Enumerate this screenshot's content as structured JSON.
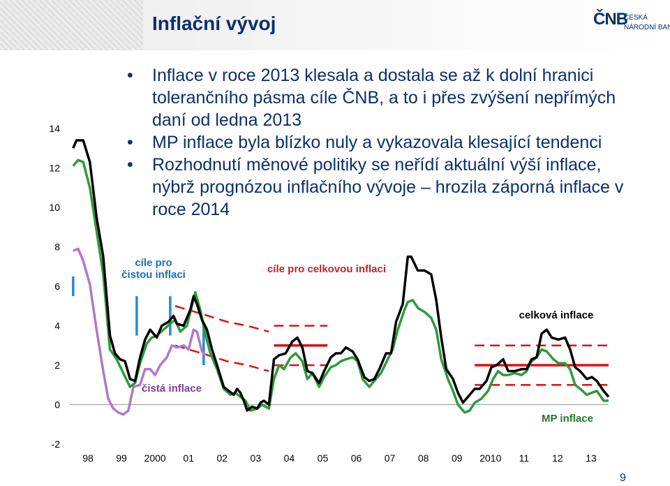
{
  "header": {
    "title": "Inflační vývoj",
    "logo_mark": "ČNB",
    "logo_line1": "ČESKÁ",
    "logo_line2": "NÁRODNÍ BANKA"
  },
  "bullets": [
    "Inflace v roce 2013 klesala a dostala se až k dolní hranici tolerančního pásma cíle ČNB, a to i přes zvýšení nepřímých daní od ledna 2013",
    "MP inflace byla blízko nuly a vykazovala klesající tendenci",
    "Rozhodnutí měnové politiky se neřídí aktuální výší inflace, nýbrž prognózou inflačního vývoje – hrozila záporná inflace v roce 2014"
  ],
  "page_number": "9",
  "chart_data": {
    "type": "line",
    "x_tick_labels": [
      "98",
      "99",
      "2000",
      "01",
      "02",
      "03",
      "04",
      "05",
      "06",
      "07",
      "08",
      "09",
      "2010",
      "11",
      "12",
      "13"
    ],
    "y_ticks": [
      -2,
      0,
      2,
      4,
      6,
      8,
      10,
      12,
      14
    ],
    "ylim": [
      -2,
      14
    ],
    "xlim": [
      1997.9,
      2014.0
    ],
    "grid": false,
    "annotations": {
      "core_target": "cíle pro\nčistou inflaci",
      "headline_target": "cíle pro celkovou inflaci",
      "headline": "celková inflace",
      "core": "čistá inflace",
      "mp": "MP inflace"
    },
    "colors": {
      "headline": "#000000",
      "mp": "#2e9a3a",
      "core": "#b079c8",
      "target": "#e01010",
      "core_target": "#2a8ad0"
    },
    "series": [
      {
        "name": "celková inflace",
        "points": [
          [
            1998.0,
            13.0
          ],
          [
            1998.1,
            13.4
          ],
          [
            1998.3,
            13.4
          ],
          [
            1998.5,
            12.3
          ],
          [
            1998.7,
            9.5
          ],
          [
            1998.9,
            7.5
          ],
          [
            1999.1,
            3.5
          ],
          [
            1999.25,
            2.6
          ],
          [
            1999.4,
            2.3
          ],
          [
            1999.55,
            2.2
          ],
          [
            1999.7,
            1.3
          ],
          [
            1999.85,
            1.2
          ],
          [
            2000.0,
            2.4
          ],
          [
            2000.15,
            3.3
          ],
          [
            2000.3,
            3.8
          ],
          [
            2000.5,
            3.4
          ],
          [
            2000.65,
            4.0
          ],
          [
            2000.85,
            4.2
          ],
          [
            2001.0,
            4.5
          ],
          [
            2001.1,
            4.1
          ],
          [
            2001.3,
            4.0
          ],
          [
            2001.5,
            4.8
          ],
          [
            2001.6,
            5.5
          ],
          [
            2001.7,
            5.1
          ],
          [
            2001.85,
            4.3
          ],
          [
            2002.0,
            3.8
          ],
          [
            2002.15,
            2.8
          ],
          [
            2002.3,
            2.0
          ],
          [
            2002.5,
            0.9
          ],
          [
            2002.65,
            0.7
          ],
          [
            2002.8,
            0.5
          ],
          [
            2002.9,
            0.8
          ],
          [
            2003.0,
            0.6
          ],
          [
            2003.1,
            0.2
          ],
          [
            2003.2,
            -0.3
          ],
          [
            2003.35,
            -0.1
          ],
          [
            2003.5,
            -0.2
          ],
          [
            2003.6,
            0.1
          ],
          [
            2003.7,
            0.2
          ],
          [
            2003.85,
            0.0
          ],
          [
            2004.0,
            2.3
          ],
          [
            2004.15,
            2.5
          ],
          [
            2004.35,
            2.6
          ],
          [
            2004.55,
            3.2
          ],
          [
            2004.7,
            3.4
          ],
          [
            2004.85,
            2.9
          ],
          [
            2005.0,
            1.7
          ],
          [
            2005.15,
            1.6
          ],
          [
            2005.35,
            1.1
          ],
          [
            2005.5,
            1.7
          ],
          [
            2005.7,
            2.4
          ],
          [
            2005.85,
            2.6
          ],
          [
            2006.0,
            2.6
          ],
          [
            2006.15,
            2.9
          ],
          [
            2006.35,
            2.7
          ],
          [
            2006.5,
            2.3
          ],
          [
            2006.7,
            1.4
          ],
          [
            2006.85,
            1.2
          ],
          [
            2007.0,
            1.3
          ],
          [
            2007.15,
            1.8
          ],
          [
            2007.35,
            2.6
          ],
          [
            2007.5,
            2.6
          ],
          [
            2007.65,
            4.2
          ],
          [
            2007.85,
            5.1
          ],
          [
            2008.0,
            7.5
          ],
          [
            2008.1,
            7.5
          ],
          [
            2008.3,
            6.8
          ],
          [
            2008.5,
            6.8
          ],
          [
            2008.7,
            6.6
          ],
          [
            2008.85,
            5.3
          ],
          [
            2009.0,
            3.4
          ],
          [
            2009.15,
            1.8
          ],
          [
            2009.35,
            1.3
          ],
          [
            2009.5,
            0.6
          ],
          [
            2009.65,
            0.1
          ],
          [
            2009.85,
            0.5
          ],
          [
            2010.0,
            0.8
          ],
          [
            2010.15,
            0.8
          ],
          [
            2010.35,
            1.2
          ],
          [
            2010.5,
            1.9
          ],
          [
            2010.65,
            2.0
          ],
          [
            2010.85,
            2.3
          ],
          [
            2011.0,
            1.7
          ],
          [
            2011.2,
            1.7
          ],
          [
            2011.4,
            1.8
          ],
          [
            2011.55,
            1.8
          ],
          [
            2011.7,
            2.3
          ],
          [
            2011.85,
            2.4
          ],
          [
            2012.0,
            3.6
          ],
          [
            2012.15,
            3.8
          ],
          [
            2012.3,
            3.4
          ],
          [
            2012.5,
            3.3
          ],
          [
            2012.7,
            3.4
          ],
          [
            2012.85,
            2.8
          ],
          [
            2013.0,
            1.9
          ],
          [
            2013.15,
            1.7
          ],
          [
            2013.35,
            1.3
          ],
          [
            2013.5,
            1.4
          ],
          [
            2013.65,
            1.2
          ],
          [
            2013.85,
            0.7
          ],
          [
            2014.0,
            0.4
          ]
        ]
      },
      {
        "name": "MP inflace",
        "points": [
          [
            1998.0,
            12.1
          ],
          [
            1998.15,
            12.4
          ],
          [
            1998.3,
            12.3
          ],
          [
            1998.5,
            11.0
          ],
          [
            1998.7,
            8.8
          ],
          [
            1998.9,
            6.6
          ],
          [
            1999.1,
            2.8
          ],
          [
            1999.3,
            2.3
          ],
          [
            1999.5,
            1.6
          ],
          [
            1999.7,
            0.9
          ],
          [
            1999.85,
            1.1
          ],
          [
            2000.0,
            2.1
          ],
          [
            2000.2,
            3.1
          ],
          [
            2000.35,
            3.4
          ],
          [
            2000.5,
            3.5
          ],
          [
            2000.7,
            3.8
          ],
          [
            2000.9,
            4.1
          ],
          [
            2001.05,
            4.3
          ],
          [
            2001.2,
            3.7
          ],
          [
            2001.4,
            4.0
          ],
          [
            2001.55,
            5.0
          ],
          [
            2001.65,
            5.7
          ],
          [
            2001.8,
            4.8
          ],
          [
            2001.95,
            3.6
          ],
          [
            2002.1,
            2.6
          ],
          [
            2002.3,
            1.8
          ],
          [
            2002.5,
            0.8
          ],
          [
            2002.7,
            0.5
          ],
          [
            2002.85,
            0.6
          ],
          [
            2003.0,
            0.4
          ],
          [
            2003.15,
            0.2
          ],
          [
            2003.3,
            -0.3
          ],
          [
            2003.5,
            -0.2
          ],
          [
            2003.65,
            0.0
          ],
          [
            2003.85,
            -0.2
          ],
          [
            2004.0,
            1.3
          ],
          [
            2004.15,
            2.0
          ],
          [
            2004.3,
            1.8
          ],
          [
            2004.5,
            2.4
          ],
          [
            2004.65,
            2.6
          ],
          [
            2004.85,
            2.2
          ],
          [
            2005.0,
            1.3
          ],
          [
            2005.15,
            1.6
          ],
          [
            2005.35,
            0.9
          ],
          [
            2005.5,
            1.4
          ],
          [
            2005.7,
            1.9
          ],
          [
            2005.85,
            2.0
          ],
          [
            2006.0,
            2.2
          ],
          [
            2006.15,
            2.3
          ],
          [
            2006.35,
            2.4
          ],
          [
            2006.5,
            2.2
          ],
          [
            2006.65,
            1.3
          ],
          [
            2006.85,
            0.9
          ],
          [
            2007.0,
            1.2
          ],
          [
            2007.2,
            1.6
          ],
          [
            2007.4,
            2.3
          ],
          [
            2007.55,
            2.8
          ],
          [
            2007.7,
            3.8
          ],
          [
            2007.9,
            4.8
          ],
          [
            2008.0,
            5.2
          ],
          [
            2008.15,
            5.3
          ],
          [
            2008.3,
            4.9
          ],
          [
            2008.5,
            4.7
          ],
          [
            2008.7,
            4.4
          ],
          [
            2008.85,
            3.8
          ],
          [
            2009.0,
            2.3
          ],
          [
            2009.2,
            1.3
          ],
          [
            2009.35,
            0.7
          ],
          [
            2009.5,
            0.0
          ],
          [
            2009.7,
            -0.4
          ],
          [
            2009.85,
            -0.3
          ],
          [
            2010.0,
            0.1
          ],
          [
            2010.2,
            0.3
          ],
          [
            2010.4,
            0.7
          ],
          [
            2010.55,
            1.3
          ],
          [
            2010.7,
            1.7
          ],
          [
            2010.85,
            1.5
          ],
          [
            2011.0,
            1.5
          ],
          [
            2011.2,
            1.6
          ],
          [
            2011.4,
            1.5
          ],
          [
            2011.55,
            1.7
          ],
          [
            2011.7,
            2.2
          ],
          [
            2011.85,
            2.4
          ],
          [
            2012.0,
            2.8
          ],
          [
            2012.15,
            2.7
          ],
          [
            2012.35,
            2.3
          ],
          [
            2012.5,
            2.1
          ],
          [
            2012.7,
            2.1
          ],
          [
            2012.85,
            1.8
          ],
          [
            2013.0,
            1.0
          ],
          [
            2013.15,
            0.8
          ],
          [
            2013.35,
            0.5
          ],
          [
            2013.5,
            0.6
          ],
          [
            2013.65,
            0.7
          ],
          [
            2013.85,
            0.2
          ],
          [
            2014.0,
            0.2
          ]
        ]
      },
      {
        "name": "čistá inflace",
        "points": [
          [
            1998.0,
            7.8
          ],
          [
            1998.15,
            7.9
          ],
          [
            1998.3,
            7.3
          ],
          [
            1998.5,
            6.1
          ],
          [
            1998.7,
            3.8
          ],
          [
            1998.9,
            1.7
          ],
          [
            1999.05,
            0.3
          ],
          [
            1999.2,
            -0.2
          ],
          [
            1999.35,
            -0.4
          ],
          [
            1999.5,
            -0.5
          ],
          [
            1999.65,
            -0.3
          ],
          [
            1999.8,
            0.9
          ],
          [
            2000.0,
            1.0
          ],
          [
            2000.15,
            1.8
          ],
          [
            2000.3,
            1.8
          ],
          [
            2000.45,
            1.5
          ],
          [
            2000.6,
            2.0
          ],
          [
            2000.8,
            2.4
          ],
          [
            2000.95,
            3.0
          ],
          [
            2001.1,
            2.9
          ],
          [
            2001.3,
            3.0
          ],
          [
            2001.45,
            2.8
          ],
          [
            2001.6,
            3.8
          ],
          [
            2001.7,
            3.7
          ],
          [
            2001.85,
            2.7
          ],
          [
            2001.95,
            2.5
          ]
        ]
      }
    ],
    "headline_targets": [
      {
        "label": "1998",
        "values": [
          [
            2001.05,
            5.0
          ],
          [
            2001.85,
            4.6
          ],
          [
            2002.6,
            4.2
          ],
          [
            2003.2,
            4.0
          ],
          [
            2003.85,
            3.7
          ]
        ]
      },
      {
        "label": "2004",
        "values": [
          [
            2004.0,
            3.0
          ],
          [
            2005.6,
            3.0
          ]
        ],
        "solid": true
      },
      {
        "label": "2004-range-upper",
        "values": [
          [
            2004.0,
            4.0
          ],
          [
            2005.6,
            4.0
          ]
        ]
      },
      {
        "label": "2004-range-lower",
        "values": [
          [
            2004.0,
            2.0
          ],
          [
            2005.6,
            2.0
          ]
        ]
      },
      {
        "label": "2001",
        "values": [
          [
            2001.05,
            3.0
          ],
          [
            2001.85,
            2.6
          ],
          [
            2002.6,
            2.2
          ],
          [
            2003.2,
            2.0
          ],
          [
            2003.85,
            1.7
          ]
        ]
      },
      {
        "label": "2010",
        "values": [
          [
            2010.0,
            2.0
          ],
          [
            2014.0,
            2.0
          ]
        ],
        "solid": true
      },
      {
        "label": "2010-range-upper",
        "values": [
          [
            2010.0,
            3.0
          ],
          [
            2014.0,
            3.0
          ]
        ]
      },
      {
        "label": "2010-range-lower",
        "values": [
          [
            2010.0,
            1.0
          ],
          [
            2014.0,
            1.0
          ]
        ]
      }
    ],
    "core_target_bars": [
      {
        "x": 1998.0,
        "low": 5.5,
        "high": 6.5
      },
      {
        "x": 1999.9,
        "low": 3.5,
        "high": 5.5
      },
      {
        "x": 2000.9,
        "low": 3.5,
        "high": 5.5
      },
      {
        "x": 2001.9,
        "low": 2.0,
        "high": 4.0
      }
    ]
  }
}
